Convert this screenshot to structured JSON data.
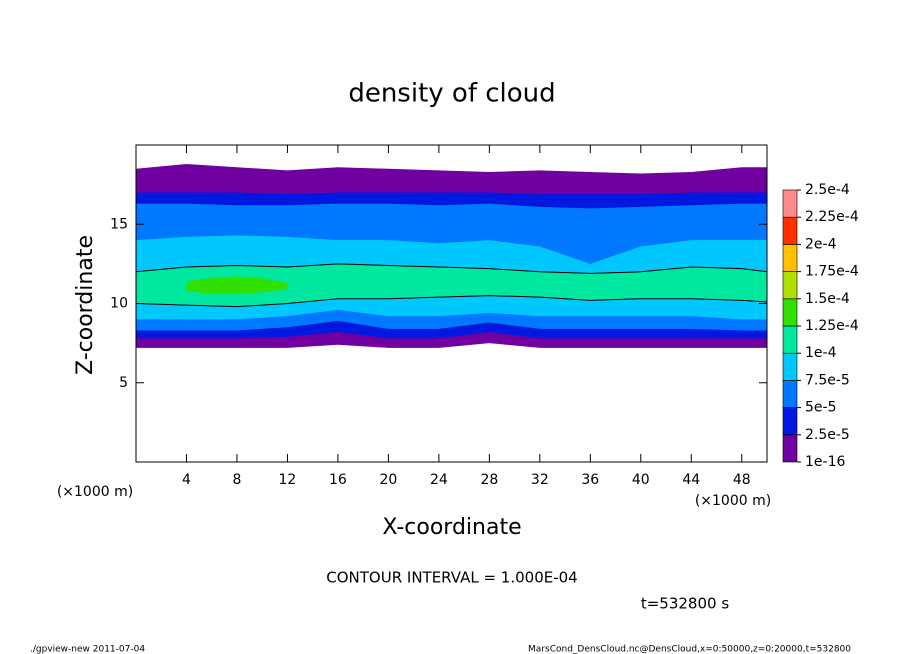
{
  "chart_data": {
    "type": "contour",
    "title": "density of cloud",
    "x_label": "X-coordinate",
    "y_label": "Z-coordinate",
    "x_unit": "(×1000 m)",
    "xlim": [
      0,
      50
    ],
    "xticks": [
      4,
      8,
      12,
      16,
      20,
      24,
      28,
      32,
      36,
      40,
      44,
      48
    ],
    "ylim": [
      0,
      20
    ],
    "yticks": [
      5,
      10,
      15
    ],
    "colorbar": {
      "ticks": [
        {
          "value": 1e-16,
          "label": "1e-16"
        },
        {
          "value": 2.5e-05,
          "label": "2.5e-5"
        },
        {
          "value": 5e-05,
          "label": "5e-5"
        },
        {
          "value": 7.5e-05,
          "label": "7.5e-5"
        },
        {
          "value": 0.0001,
          "label": "1e-4"
        },
        {
          "value": 0.000125,
          "label": "1.25e-4"
        },
        {
          "value": 0.00015,
          "label": "1.5e-4"
        },
        {
          "value": 0.000175,
          "label": "1.75e-4"
        },
        {
          "value": 0.0002,
          "label": "2e-4"
        },
        {
          "value": 0.000225,
          "label": "2.25e-4"
        },
        {
          "value": 0.00025,
          "label": "2.5e-4"
        }
      ],
      "colors": [
        "#7000a0",
        "#0018e0",
        "#0078ff",
        "#00c8ff",
        "#00e8a0",
        "#30e000",
        "#b0e000",
        "#ffc000",
        "#ff3000",
        "#ff8888"
      ]
    },
    "bands": [
      {
        "value": 1e-16,
        "color": "#7000a0",
        "x": [
          0,
          4,
          8,
          12,
          16,
          20,
          24,
          28,
          32,
          36,
          40,
          44,
          48,
          50
        ],
        "z_bottom": [
          7.2,
          7.2,
          7.2,
          7.2,
          7.4,
          7.2,
          7.2,
          7.5,
          7.2,
          7.2,
          7.2,
          7.2,
          7.2,
          7.2
        ],
        "z_top": [
          18.5,
          18.8,
          18.6,
          18.4,
          18.6,
          18.5,
          18.4,
          18.3,
          18.4,
          18.3,
          18.2,
          18.3,
          18.6,
          18.6
        ]
      },
      {
        "value": 2.5e-05,
        "color": "#0018e0",
        "x": [
          0,
          4,
          8,
          12,
          16,
          20,
          24,
          28,
          32,
          36,
          40,
          44,
          48,
          50
        ],
        "z_bottom": [
          7.8,
          7.8,
          7.8,
          7.9,
          8.2,
          7.8,
          7.8,
          8.2,
          7.8,
          7.8,
          7.8,
          7.8,
          7.8,
          7.8
        ],
        "z_top": [
          17.0,
          17.0,
          17.0,
          16.9,
          17.0,
          17.0,
          17.0,
          17.0,
          16.9,
          16.9,
          16.9,
          17.0,
          17.0,
          17.0
        ]
      },
      {
        "value": 5e-05,
        "color": "#0078ff",
        "x": [
          0,
          4,
          8,
          12,
          16,
          20,
          24,
          28,
          32,
          36,
          40,
          44,
          48,
          50
        ],
        "z_bottom": [
          8.3,
          8.3,
          8.3,
          8.5,
          8.9,
          8.4,
          8.4,
          8.8,
          8.4,
          8.4,
          8.4,
          8.4,
          8.3,
          8.3
        ],
        "z_top": [
          16.3,
          16.3,
          16.2,
          16.2,
          16.3,
          16.3,
          16.2,
          16.3,
          16.1,
          16.0,
          16.1,
          16.2,
          16.3,
          16.3
        ]
      },
      {
        "value": 7.5e-05,
        "color": "#00c8ff",
        "x": [
          0,
          4,
          8,
          12,
          16,
          20,
          24,
          28,
          32,
          36,
          40,
          44,
          48,
          50
        ],
        "z_bottom": [
          9.0,
          9.0,
          9.0,
          9.2,
          9.6,
          9.2,
          9.2,
          9.4,
          9.2,
          9.2,
          9.2,
          9.2,
          9.0,
          9.0
        ],
        "z_top": [
          14.0,
          14.2,
          14.3,
          14.2,
          14.0,
          14.0,
          13.8,
          14.0,
          13.6,
          12.5,
          13.6,
          14.0,
          14.0,
          14.0
        ]
      },
      {
        "value": 0.0001,
        "color": "#00e8a0",
        "x": [
          0,
          4,
          8,
          12,
          16,
          20,
          24,
          28,
          32,
          36,
          40,
          44,
          48,
          50
        ],
        "z_bottom": [
          10.0,
          9.9,
          9.8,
          10.0,
          10.3,
          10.3,
          10.4,
          10.5,
          10.4,
          10.2,
          10.3,
          10.3,
          10.2,
          10.1
        ],
        "z_top": [
          12.0,
          12.3,
          12.4,
          12.3,
          12.5,
          12.4,
          12.3,
          12.2,
          12.0,
          11.9,
          12.0,
          12.3,
          12.2,
          12.0
        ]
      },
      {
        "value": 0.000125,
        "color": "#30e000",
        "x": [
          4,
          6,
          8,
          10,
          12
        ],
        "z_bottom": [
          10.8,
          10.6,
          10.6,
          10.7,
          10.9
        ],
        "z_top": [
          11.4,
          11.6,
          11.7,
          11.6,
          11.3
        ]
      }
    ],
    "contour_interval": "CONTOUR INTERVAL = 1.000E-04",
    "time": "t=532800 s",
    "footer_left": "./gpview-new  2011-07-04",
    "footer_right": "MarsCond_DensCloud.nc@DensCloud,x=0:50000,z=0:20000,t=532800"
  }
}
